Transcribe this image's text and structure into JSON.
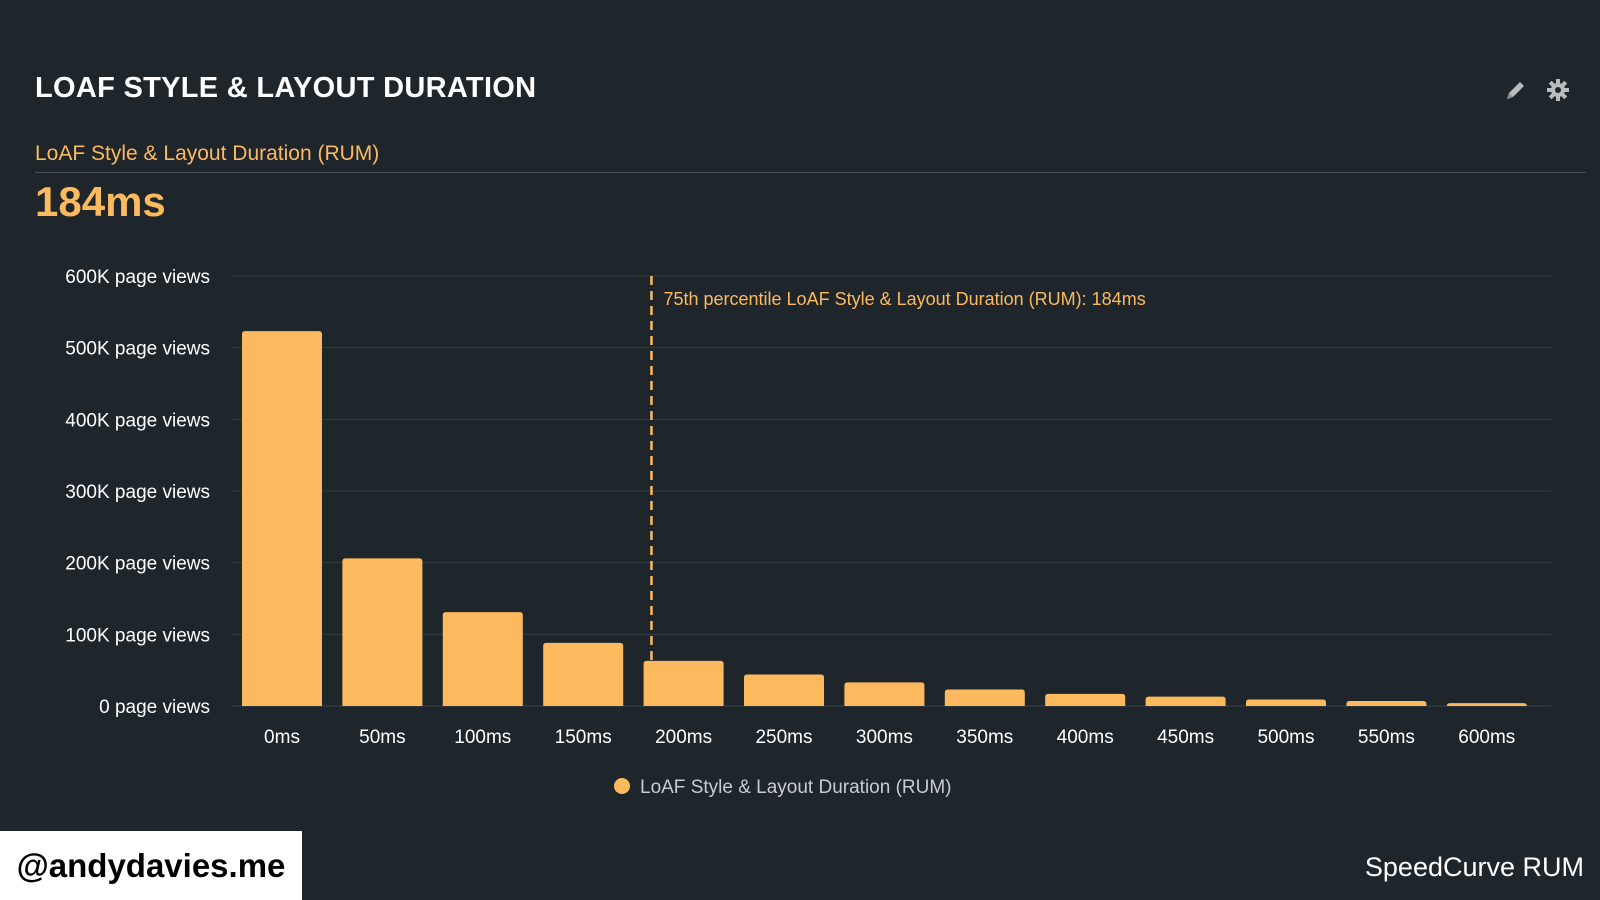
{
  "header": {
    "title": "LOAF STYLE & LAYOUT DURATION",
    "edit_icon": "pencil-icon",
    "settings_icon": "gear-icon"
  },
  "metric": {
    "label": "LoAF Style & Layout Duration (RUM)",
    "value": "184ms"
  },
  "chart_data": {
    "type": "bar",
    "title": "LoAF Style & Layout Duration (RUM)",
    "xlabel": "",
    "ylabel": "",
    "categories": [
      "0ms",
      "50ms",
      "100ms",
      "150ms",
      "200ms",
      "250ms",
      "300ms",
      "350ms",
      "400ms",
      "450ms",
      "500ms",
      "550ms",
      "600ms"
    ],
    "series": [
      {
        "name": "LoAF Style & Layout Duration (RUM)",
        "color": "#fdb95e",
        "values": [
          523000,
          206000,
          131000,
          88000,
          63000,
          44000,
          33000,
          23000,
          17000,
          13000,
          9000,
          7000,
          4000
        ]
      }
    ],
    "ylim": [
      0,
      600000
    ],
    "yticks": [
      0,
      100000,
      200000,
      300000,
      400000,
      500000,
      600000
    ],
    "ytick_labels": [
      "0 page views",
      "100K page views",
      "200K page views",
      "300K page views",
      "400K page views",
      "500K page views",
      "600K page views"
    ],
    "grid": true,
    "legend": "bottom-center",
    "annotation": {
      "x_ms": 184,
      "label": "75th percentile LoAF Style & Layout Duration (RUM): 184ms"
    }
  },
  "footer": {
    "handle": "@andydavies.me",
    "brand": "SpeedCurve RUM"
  }
}
